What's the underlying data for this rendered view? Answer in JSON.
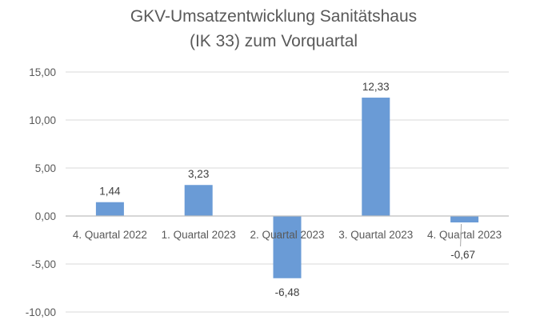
{
  "chart_data": {
    "type": "bar",
    "title_lines": [
      "GKV-Umsatzentwicklung Sanitätshaus",
      "(IK 33) zum Vorquartal"
    ],
    "categories": [
      "4. Quartal 2022",
      "1. Quartal 2023",
      "2. Quartal 2023",
      "3. Quartal 2023",
      "4. Quartal 2023"
    ],
    "values": [
      1.44,
      3.23,
      -6.48,
      12.33,
      -0.67
    ],
    "value_labels": [
      "1,44",
      "3,23",
      "-6,48",
      "12,33",
      "-0,67"
    ],
    "y_ticks": [
      15,
      10,
      5,
      0,
      -5,
      -10
    ],
    "y_tick_labels": [
      "15,00",
      "10,00",
      "5,00",
      "0,00",
      "-5,00",
      "-10,00"
    ],
    "ylim": [
      -10,
      15
    ],
    "grid": true,
    "legend": "none",
    "bar_color": "#6a9bd6",
    "grid_color": "#d9d9d9",
    "axis_color": "#bfbfbf",
    "text_color": "#595959"
  }
}
